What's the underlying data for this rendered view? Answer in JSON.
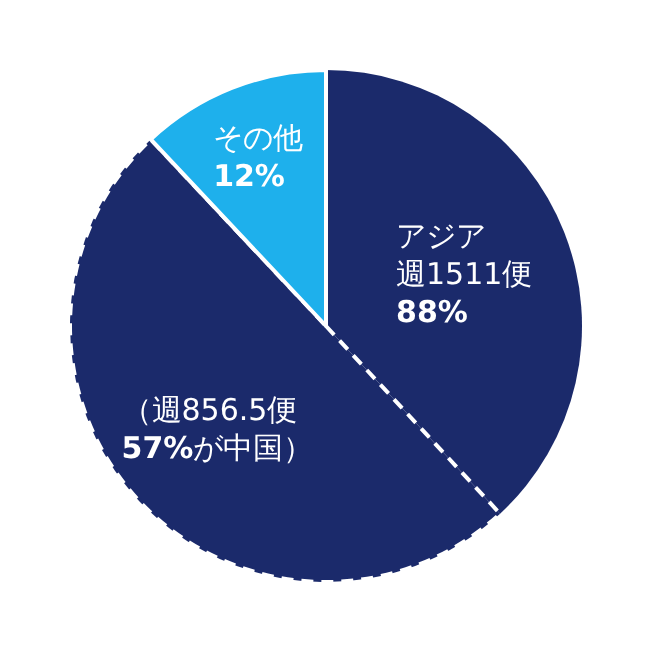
{
  "chart_data": {
    "type": "pie",
    "categories": [
      "アジア週1511便88%",
      "（週856.5便57%が中国）",
      "その他12%"
    ],
    "values": [
      38.1,
      49.9,
      12
    ],
    "colors": [
      "#1b2a6b",
      "#1b2a6b",
      "#1eb0ec"
    ]
  }
}
